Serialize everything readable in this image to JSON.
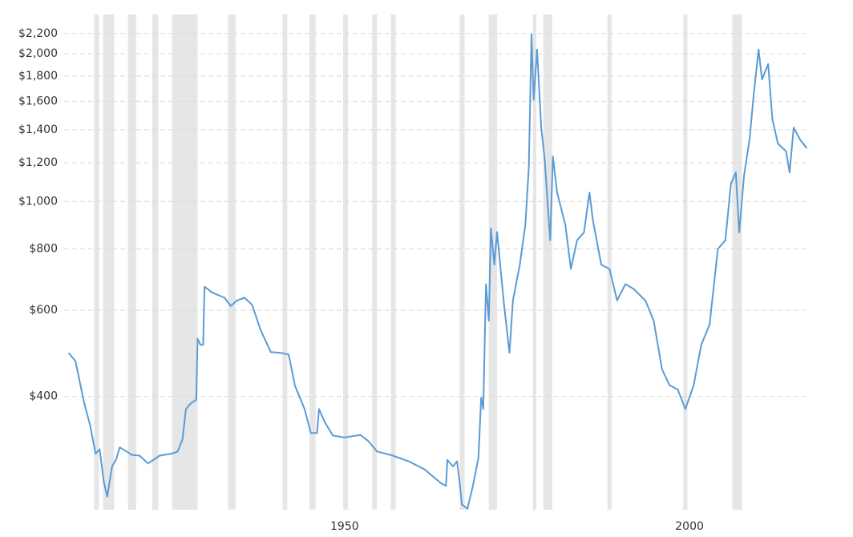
{
  "chart_data": {
    "type": "line",
    "log_y": true,
    "grid": true,
    "color": "#5b9bd5",
    "recession_color": "#e6e6e6",
    "x": [
      1910.0,
      1911.0,
      1912.2,
      1913.1,
      1913.9,
      1914.5,
      1915.1,
      1915.6,
      1916.3,
      1916.9,
      1917.4,
      1918.4,
      1919.2,
      1920.3,
      1921.5,
      1923.2,
      1925.0,
      1925.8,
      1926.5,
      1927.0,
      1927.7,
      1928.5,
      1928.7,
      1929.1,
      1929.5,
      1929.7,
      1930.8,
      1932.6,
      1933.5,
      1934.4,
      1935.5,
      1936.6,
      1937.8,
      1939.3,
      1940.7,
      1941.9,
      1942.8,
      1944.2,
      1945.1,
      1946.0,
      1946.3,
      1947.1,
      1948.3,
      1950.0,
      1952.3,
      1953.5,
      1954.7,
      1957.0,
      1959.3,
      1961.6,
      1964.0,
      1964.7,
      1964.9,
      1965.7,
      1966.3,
      1966.6,
      1967.0,
      1967.8,
      1968.6,
      1969.4,
      1969.8,
      1970.1,
      1970.5,
      1970.9,
      1971.2,
      1971.7,
      1972.1,
      1973.1,
      1973.9,
      1974.4,
      1975.4,
      1976.2,
      1976.7,
      1977.1,
      1977.4,
      1977.9,
      1978.5,
      1979.0,
      1979.8,
      1980.2,
      1980.8,
      1982.0,
      1982.8,
      1983.7,
      1984.7,
      1985.5,
      1986.0,
      1987.2,
      1988.4,
      1989.5,
      1990.7,
      1991.9,
      1993.6,
      1994.8,
      1996.0,
      1997.1,
      1998.3,
      1999.4,
      2000.6,
      2001.7,
      2002.9,
      2004.1,
      2005.2,
      2006.0,
      2006.7,
      2007.2,
      2007.9,
      2008.7,
      2009.3,
      2010.0,
      2010.5,
      2011.4,
      2012.0,
      2012.8,
      2014.0,
      2014.5,
      2015.1,
      2016.0,
      2017.0
    ],
    "values": [
      491,
      472,
      391,
      350,
      306,
      312,
      268,
      250,
      288,
      298,
      315,
      309,
      304,
      303,
      292,
      303,
      306,
      309,
      327,
      377,
      387,
      394,
      525,
      510,
      510,
      670,
      652,
      636,
      612,
      628,
      636,
      615,
      548,
      493,
      491,
      487,
      421,
      377,
      337,
      337,
      377,
      355,
      333,
      330,
      334,
      324,
      309,
      303,
      295,
      284,
      266,
      263,
      297,
      288,
      295,
      273,
      241,
      236,
      263,
      300,
      398,
      377,
      678,
      571,
      880,
      743,
      866,
      618,
      491,
      628,
      743,
      895,
      1173,
      2190,
      1612,
      2040,
      1414,
      1219,
      833,
      1234,
      1042,
      896,
      728,
      833,
      864,
      1042,
      914,
      743,
      728,
      628,
      678,
      663,
      628,
      571,
      455,
      422,
      413,
      377,
      422,
      510,
      560,
      800,
      833,
      1086,
      1146,
      864,
      1130,
      1338,
      1648,
      2040,
      1773,
      1906,
      1473,
      1312,
      1265,
      1146,
      1414,
      1338,
      1283
    ],
    "recessions": [
      [
        1913.7,
        1914.4
      ],
      [
        1915.0,
        1916.6
      ],
      [
        1918.6,
        1919.8
      ],
      [
        1922.1,
        1923.0
      ],
      [
        1925.0,
        1928.7
      ],
      [
        1933.1,
        1934.2
      ],
      [
        1941.0,
        1941.7
      ],
      [
        1944.9,
        1945.8
      ],
      [
        1949.8,
        1950.5
      ],
      [
        1954.0,
        1954.7
      ],
      [
        1956.7,
        1957.4
      ],
      [
        1966.7,
        1967.4
      ],
      [
        1970.9,
        1972.1
      ],
      [
        1977.3,
        1977.8
      ],
      [
        1978.8,
        1980.1
      ],
      [
        1988.1,
        1988.7
      ],
      [
        1999.1,
        1999.7
      ],
      [
        2006.2,
        2007.6
      ]
    ],
    "xlim": [
      1909,
      2018
    ],
    "xticks": [
      1950,
      2000
    ],
    "ylim": [
      235,
      2300
    ],
    "yticks": [
      {
        "value": 400,
        "label": "$400"
      },
      {
        "value": 600,
        "label": "$600"
      },
      {
        "value": 800,
        "label": "$800"
      },
      {
        "value": 1000,
        "label": "$1,000"
      },
      {
        "value": 1200,
        "label": "$1,200"
      },
      {
        "value": 1400,
        "label": "$1,400"
      },
      {
        "value": 1600,
        "label": "$1,600"
      },
      {
        "value": 1800,
        "label": "$1,800"
      },
      {
        "value": 2000,
        "label": "$2,000"
      },
      {
        "value": 2200,
        "label": "$2,200"
      }
    ]
  }
}
